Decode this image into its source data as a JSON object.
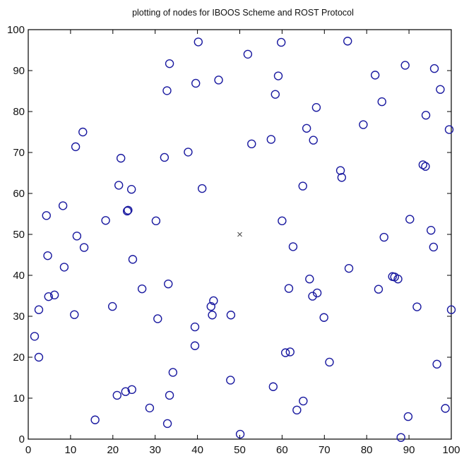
{
  "chart_data": {
    "type": "scatter",
    "title": "plotting of nodes for IBOOS Scheme and ROST Protocol",
    "xlabel": "",
    "ylabel": "",
    "xlim": [
      0,
      100
    ],
    "ylim": [
      0,
      100
    ],
    "xticks": [
      0,
      10,
      20,
      30,
      40,
      50,
      60,
      70,
      80,
      90,
      100
    ],
    "yticks": [
      0,
      10,
      20,
      30,
      40,
      50,
      60,
      70,
      80,
      90,
      100
    ],
    "grid": false,
    "series": [
      {
        "marker": "circle",
        "color": "#1a1aa0",
        "points": [
          [
            1.5,
            25.1
          ],
          [
            2.5,
            20.0
          ],
          [
            2.5,
            31.6
          ],
          [
            4.3,
            54.6
          ],
          [
            4.6,
            44.8
          ],
          [
            4.8,
            34.8
          ],
          [
            6.2,
            35.2
          ],
          [
            8.2,
            57.0
          ],
          [
            8.5,
            42.0
          ],
          [
            10.9,
            30.4
          ],
          [
            11.2,
            71.4
          ],
          [
            11.5,
            49.6
          ],
          [
            12.9,
            75.0
          ],
          [
            13.2,
            46.8
          ],
          [
            15.8,
            4.7
          ],
          [
            18.3,
            53.4
          ],
          [
            19.9,
            32.4
          ],
          [
            21.0,
            10.7
          ],
          [
            21.4,
            62.0
          ],
          [
            21.9,
            68.6
          ],
          [
            23.0,
            11.6
          ],
          [
            23.4,
            55.7
          ],
          [
            23.6,
            55.9
          ],
          [
            24.4,
            61.0
          ],
          [
            24.5,
            12.1
          ],
          [
            24.7,
            43.9
          ],
          [
            26.9,
            36.7
          ],
          [
            28.7,
            7.6
          ],
          [
            30.2,
            53.3
          ],
          [
            30.6,
            29.4
          ],
          [
            32.2,
            68.8
          ],
          [
            32.8,
            85.1
          ],
          [
            32.9,
            3.8
          ],
          [
            33.1,
            37.9
          ],
          [
            33.4,
            10.7
          ],
          [
            33.4,
            91.7
          ],
          [
            34.2,
            16.3
          ],
          [
            37.8,
            70.1
          ],
          [
            39.4,
            27.4
          ],
          [
            39.4,
            22.8
          ],
          [
            39.6,
            86.9
          ],
          [
            40.2,
            97.0
          ],
          [
            41.1,
            61.2
          ],
          [
            43.2,
            32.4
          ],
          [
            43.5,
            30.3
          ],
          [
            43.8,
            33.8
          ],
          [
            45.0,
            87.7
          ],
          [
            47.8,
            14.4
          ],
          [
            47.9,
            30.3
          ],
          [
            50.1,
            1.2
          ],
          [
            51.9,
            94.0
          ],
          [
            52.8,
            72.1
          ],
          [
            57.4,
            73.2
          ],
          [
            57.9,
            12.8
          ],
          [
            58.4,
            84.2
          ],
          [
            59.1,
            88.7
          ],
          [
            59.8,
            96.9
          ],
          [
            60.0,
            53.3
          ],
          [
            60.8,
            21.1
          ],
          [
            61.6,
            36.8
          ],
          [
            61.9,
            21.3
          ],
          [
            62.6,
            47.0
          ],
          [
            63.5,
            7.1
          ],
          [
            64.9,
            61.8
          ],
          [
            65.0,
            9.3
          ],
          [
            65.8,
            75.9
          ],
          [
            66.5,
            39.1
          ],
          [
            67.2,
            34.9
          ],
          [
            67.4,
            73.0
          ],
          [
            68.1,
            81.0
          ],
          [
            68.3,
            35.7
          ],
          [
            69.9,
            29.7
          ],
          [
            71.2,
            18.8
          ],
          [
            73.8,
            65.6
          ],
          [
            74.1,
            63.9
          ],
          [
            75.5,
            97.2
          ],
          [
            75.8,
            41.7
          ],
          [
            79.2,
            76.8
          ],
          [
            82.0,
            88.9
          ],
          [
            82.8,
            36.6
          ],
          [
            83.6,
            82.4
          ],
          [
            84.1,
            49.3
          ],
          [
            86.1,
            39.7
          ],
          [
            86.6,
            39.6
          ],
          [
            87.4,
            39.1
          ],
          [
            88.1,
            0.4
          ],
          [
            89.1,
            91.3
          ],
          [
            89.8,
            5.5
          ],
          [
            90.2,
            53.7
          ],
          [
            91.9,
            32.3
          ],
          [
            93.3,
            67.0
          ],
          [
            93.9,
            66.6
          ],
          [
            94.0,
            79.1
          ],
          [
            95.2,
            51.0
          ],
          [
            95.8,
            46.9
          ],
          [
            96.0,
            90.5
          ],
          [
            96.6,
            18.3
          ],
          [
            97.4,
            85.4
          ],
          [
            98.6,
            7.5
          ],
          [
            99.5,
            75.6
          ],
          [
            100.0,
            31.6
          ]
        ]
      },
      {
        "marker": "x",
        "color": "#555555",
        "points": [
          [
            50.0,
            50.0
          ]
        ]
      }
    ]
  }
}
